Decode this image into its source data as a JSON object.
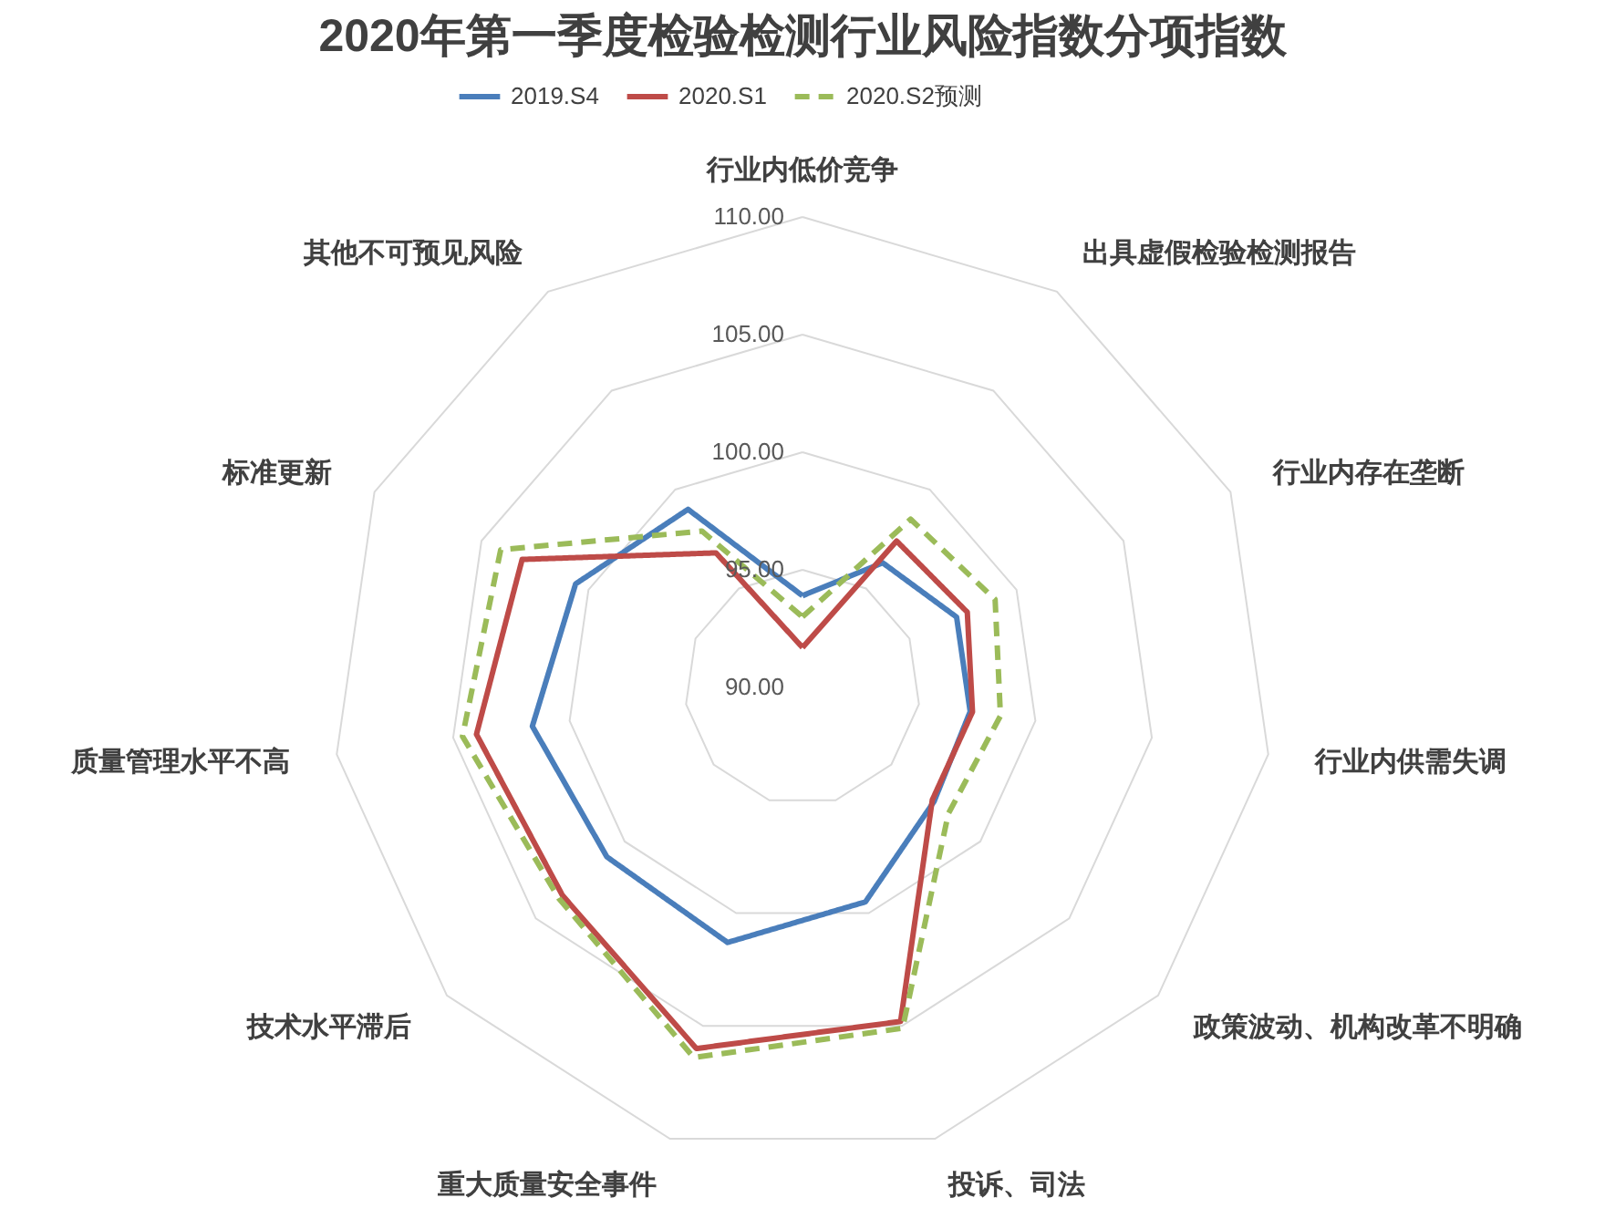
{
  "chart_data": {
    "type": "radar",
    "title": "2020年第一季度检验检测行业风险指数分项指数",
    "categories": [
      "行业内低价竞争",
      "出具虚假检验检测报告",
      "行业内存在垄断",
      "行业内供需失调",
      "政策波动、机构改革不明确",
      "投诉、司法",
      "重大质量安全事件",
      "技术水平滞后",
      "质量管理水平不高",
      "标准更新",
      "其他不可预见风险"
    ],
    "series": [
      {
        "name": "2019.S4",
        "color": "#4a7ebb",
        "line_style": "solid",
        "values": [
          93.9,
          96.3,
          97.2,
          97.2,
          97.4,
          99.5,
          101.3,
          101.0,
          101.6,
          100.6,
          99.0
        ]
      },
      {
        "name": "2020.S1",
        "color": "#be4b48",
        "line_style": "solid",
        "values": [
          91.7,
          97.4,
          97.7,
          97.3,
          97.3,
          104.8,
          106.0,
          103.5,
          104.0,
          103.1,
          96.8
        ]
      },
      {
        "name": "2020.S2预测",
        "color": "#9bbb59",
        "line_style": "dashed",
        "values": [
          93.0,
          98.5,
          99.0,
          98.5,
          98.2,
          105.1,
          106.4,
          103.7,
          104.6,
          104.1,
          97.9
        ]
      }
    ],
    "ylim": [
      90,
      110
    ],
    "yticks": [
      {
        "value": 90,
        "label": "90.00"
      },
      {
        "value": 95,
        "label": "95.00"
      },
      {
        "value": 100,
        "label": "100.00"
      },
      {
        "value": 105,
        "label": "105.00"
      },
      {
        "value": 110,
        "label": "110.00"
      }
    ],
    "grid": true,
    "legend": "top"
  }
}
